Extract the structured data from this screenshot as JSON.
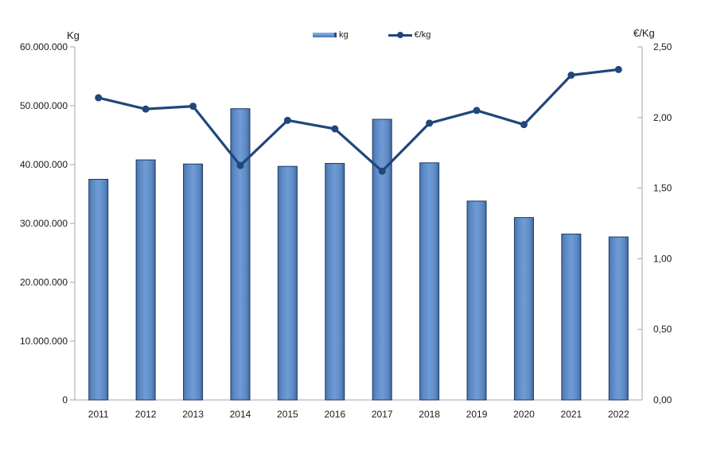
{
  "chart": {
    "legend": {
      "bar_label": "kg",
      "line_label": "€/kg"
    },
    "colors": {
      "bar_edge": "#4a74ad",
      "bar_mid": "#6f9cd6",
      "bar_border": "#1b3a66",
      "line": "#1f477b",
      "axis": "#a6a6a6",
      "text": "#1a1a1a",
      "background": "#ffffff"
    }
  },
  "chart_data": {
    "type": "bar",
    "subtype": "combo-bar-line-dual-axis",
    "categories": [
      "2011",
      "2012",
      "2013",
      "2014",
      "2015",
      "2016",
      "2017",
      "2018",
      "2019",
      "2020",
      "2021",
      "2022"
    ],
    "series": [
      {
        "name": "kg",
        "type": "bar",
        "axis": "left",
        "values": [
          37500000,
          40800000,
          40100000,
          49500000,
          39700000,
          40200000,
          47700000,
          40300000,
          33800000,
          31000000,
          28200000,
          27700000
        ]
      },
      {
        "name": "€/kg",
        "type": "line",
        "axis": "right",
        "values": [
          2.14,
          2.06,
          2.08,
          1.66,
          1.98,
          1.92,
          1.62,
          1.96,
          2.05,
          1.95,
          2.3,
          2.34
        ]
      }
    ],
    "left_axis": {
      "title": "Kg",
      "min": 0,
      "max": 60000000,
      "tick_interval": 10000000,
      "tick_labels": [
        "0",
        "10.000.000",
        "20.000.000",
        "30.000.000",
        "40.000.000",
        "50.000.000",
        "60.000.000"
      ]
    },
    "right_axis": {
      "title": "€/Kg",
      "min": 0,
      "max": 2.5,
      "tick_interval": 0.5,
      "tick_labels": [
        "0,00",
        "0,50",
        "1,00",
        "1,50",
        "2,00",
        "2,50"
      ]
    },
    "grid": false,
    "legend_position": "top-center"
  }
}
